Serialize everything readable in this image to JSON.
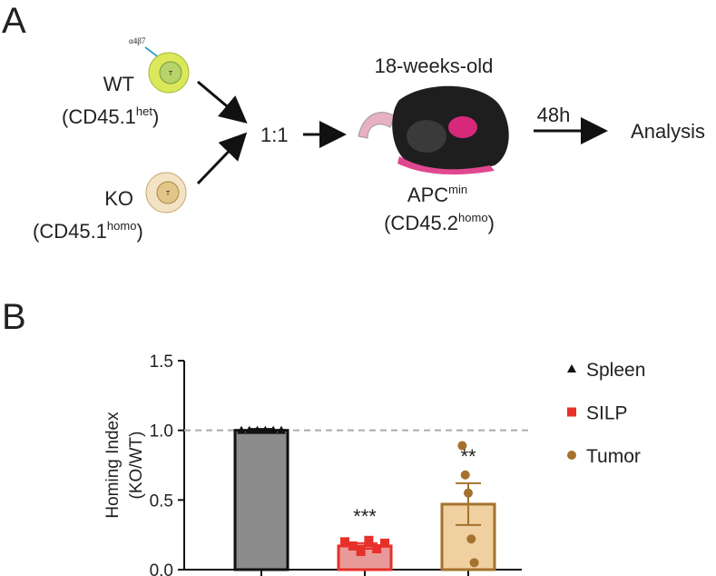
{
  "panel_a": {
    "label": "A",
    "integrin": "α4β7",
    "cell_letter": "T",
    "wt": {
      "name": "WT",
      "strain": "(CD45.1",
      "sup": "het",
      "close": ")"
    },
    "ko": {
      "name": "KO",
      "strain": "(CD45.1",
      "sup": "homo",
      "close": ")"
    },
    "ratio": "1:1",
    "age": "18-weeks-old",
    "host": {
      "name": "APC",
      "sup": "min",
      "strain": "(CD45.2",
      "strain_sup": "homo",
      "close": ")"
    },
    "time": "48h",
    "result": "Analysis"
  },
  "chart_data": {
    "type": "bar",
    "panel_label": "B",
    "ylabel": [
      "Homing Index",
      "(KO/WT)"
    ],
    "ylim": [
      0,
      1.5
    ],
    "yticks": [
      {
        "value": 0,
        "label": "0.0"
      },
      0.5,
      {
        "value": 1,
        "label": "1.0"
      },
      1.5
    ],
    "reference_line": 1,
    "grid": false,
    "legend": "right",
    "series": [
      {
        "name": "Spleen",
        "color": "#111111",
        "fill": "#8c8c8c",
        "marker": "triangle",
        "values": [
          1.0
        ],
        "errors": [
          0.01
        ],
        "points": [
          1.0,
          1.0,
          1.0,
          1.0,
          1.0,
          1.0
        ],
        "annotation": null
      },
      {
        "name": "SILP",
        "color": "#e8302a",
        "fill": "#e89a9a",
        "marker": "square",
        "values": [
          0.17
        ],
        "errors": [
          0.02
        ],
        "points": [
          0.2,
          0.17,
          0.13,
          0.21,
          0.15,
          0.19
        ],
        "annotation": "***"
      },
      {
        "name": "Tumor",
        "color": "#a5722e",
        "fill": "#f0cfa0",
        "marker": "circle",
        "values": [
          0.47
        ],
        "errors": [
          0.15
        ],
        "points": [
          0.89,
          0.68,
          0.55,
          0.22,
          0.05
        ],
        "annotation": "**"
      }
    ]
  }
}
